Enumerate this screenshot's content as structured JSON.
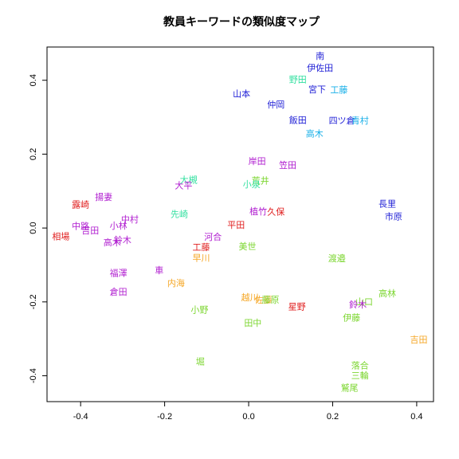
{
  "chart_data": {
    "type": "scatter",
    "title": "教員キーワードの類似度マップ",
    "xlabel": "",
    "ylabel": "",
    "xlim": [
      -0.48,
      0.44
    ],
    "ylim": [
      -0.47,
      0.49
    ],
    "xticks": [
      -0.4,
      -0.2,
      0.0,
      0.2,
      0.4
    ],
    "xtick_labels": [
      "-0.4",
      "-0.2",
      "0.0",
      "0.2",
      "0.4"
    ],
    "yticks": [
      -0.4,
      -0.2,
      0.0,
      0.2,
      0.4
    ],
    "ytick_labels": [
      "-0.4",
      "-0.2",
      "0.0",
      "0.2",
      "0.4"
    ],
    "grid": false,
    "points": [
      {
        "label": "南",
        "x": 0.17,
        "y": 0.465,
        "color": "#1f1fd6"
      },
      {
        "label": "伊佐田",
        "x": 0.17,
        "y": 0.433,
        "color": "#1f1fd6"
      },
      {
        "label": "野田",
        "x": 0.117,
        "y": 0.402,
        "color": "#33e0a0"
      },
      {
        "label": "宮下",
        "x": 0.163,
        "y": 0.375,
        "color": "#1f1fd6"
      },
      {
        "label": "工藤",
        "x": 0.215,
        "y": 0.373,
        "color": "#1ab0e8"
      },
      {
        "label": "山本",
        "x": -0.017,
        "y": 0.363,
        "color": "#1f1fd6"
      },
      {
        "label": "仲岡",
        "x": 0.065,
        "y": 0.334,
        "color": "#1f1fd6"
      },
      {
        "label": "飯田",
        "x": 0.117,
        "y": 0.292,
        "color": "#1f1fd6"
      },
      {
        "label": "四ツ倉",
        "x": 0.222,
        "y": 0.29,
        "color": "#1f1fd6"
      },
      {
        "label": "青村",
        "x": 0.265,
        "y": 0.29,
        "color": "#1ab0e8"
      },
      {
        "label": "高木",
        "x": 0.157,
        "y": 0.255,
        "color": "#1ab0e8"
      },
      {
        "label": "岸田",
        "x": 0.02,
        "y": 0.18,
        "color": "#b01ed0"
      },
      {
        "label": "笠田",
        "x": 0.093,
        "y": 0.17,
        "color": "#b01ed0"
      },
      {
        "label": "荒井",
        "x": 0.028,
        "y": 0.128,
        "color": "#7cd630"
      },
      {
        "label": "小泉",
        "x": 0.007,
        "y": 0.118,
        "color": "#33e0a0"
      },
      {
        "label": "大槻",
        "x": -0.143,
        "y": 0.13,
        "color": "#33e0a0"
      },
      {
        "label": "大平",
        "x": -0.155,
        "y": 0.115,
        "color": "#b01ed0"
      },
      {
        "label": "長里",
        "x": 0.33,
        "y": 0.065,
        "color": "#1f1fd6"
      },
      {
        "label": "市原",
        "x": 0.345,
        "y": 0.03,
        "color": "#1f1fd6"
      },
      {
        "label": "揚妻",
        "x": -0.345,
        "y": 0.083,
        "color": "#b01ed0"
      },
      {
        "label": "露崎",
        "x": -0.4,
        "y": 0.063,
        "color": "#e01f1f"
      },
      {
        "label": "植竹",
        "x": 0.023,
        "y": 0.045,
        "color": "#b01ed0"
      },
      {
        "label": "久保",
        "x": 0.065,
        "y": 0.043,
        "color": "#e01f1f"
      },
      {
        "label": "先崎",
        "x": -0.165,
        "y": 0.037,
        "color": "#33e0a0"
      },
      {
        "label": "中村",
        "x": -0.283,
        "y": 0.023,
        "color": "#b01ed0"
      },
      {
        "label": "平田",
        "x": -0.03,
        "y": 0.008,
        "color": "#e01f1f"
      },
      {
        "label": "小林",
        "x": -0.31,
        "y": 0.006,
        "color": "#b01ed0"
      },
      {
        "label": "中路",
        "x": -0.4,
        "y": 0.005,
        "color": "#b01ed0"
      },
      {
        "label": "吉田",
        "x": -0.377,
        "y": -0.007,
        "color": "#b01ed0"
      },
      {
        "label": "相場",
        "x": -0.447,
        "y": -0.023,
        "color": "#e01f1f"
      },
      {
        "label": "河合",
        "x": -0.085,
        "y": -0.025,
        "color": "#b01ed0"
      },
      {
        "label": "鈴木",
        "x": -0.3,
        "y": -0.033,
        "color": "#b01ed0"
      },
      {
        "label": "高木",
        "x": -0.325,
        "y": -0.04,
        "color": "#b01ed0"
      },
      {
        "label": "美世",
        "x": -0.003,
        "y": -0.05,
        "color": "#7cd630"
      },
      {
        "label": "工藤",
        "x": -0.113,
        "y": -0.053,
        "color": "#e01f1f"
      },
      {
        "label": "早川",
        "x": -0.113,
        "y": -0.082,
        "color": "#f5a623"
      },
      {
        "label": "渡邉",
        "x": 0.21,
        "y": -0.083,
        "color": "#7cd630"
      },
      {
        "label": "車",
        "x": -0.213,
        "y": -0.115,
        "color": "#b01ed0"
      },
      {
        "label": "福澤",
        "x": -0.31,
        "y": -0.123,
        "color": "#b01ed0"
      },
      {
        "label": "内海",
        "x": -0.173,
        "y": -0.15,
        "color": "#f5a623"
      },
      {
        "label": "倉田",
        "x": -0.31,
        "y": -0.173,
        "color": "#b01ed0"
      },
      {
        "label": "高林",
        "x": 0.33,
        "y": -0.178,
        "color": "#7cd630"
      },
      {
        "label": "越川",
        "x": 0.003,
        "y": -0.188,
        "color": "#f5a623"
      },
      {
        "label": "佐藤",
        "x": 0.035,
        "y": -0.195,
        "color": "#f5a623"
      },
      {
        "label": "藤原",
        "x": 0.052,
        "y": -0.195,
        "color": "#7cd630"
      },
      {
        "label": "山口",
        "x": 0.275,
        "y": -0.2,
        "color": "#7cd630"
      },
      {
        "label": "鈴木",
        "x": 0.26,
        "y": -0.208,
        "color": "#b01ed0"
      },
      {
        "label": "星野",
        "x": 0.115,
        "y": -0.213,
        "color": "#e01f1f"
      },
      {
        "label": "小野",
        "x": -0.117,
        "y": -0.222,
        "color": "#7cd630"
      },
      {
        "label": "伊藤",
        "x": 0.245,
        "y": -0.243,
        "color": "#7cd630"
      },
      {
        "label": "田中",
        "x": 0.01,
        "y": -0.258,
        "color": "#7cd630"
      },
      {
        "label": "吉田",
        "x": 0.405,
        "y": -0.303,
        "color": "#f5a623"
      },
      {
        "label": "堀",
        "x": -0.115,
        "y": -0.362,
        "color": "#7cd630"
      },
      {
        "label": "落合",
        "x": 0.265,
        "y": -0.373,
        "color": "#7cd630"
      },
      {
        "label": "三輪",
        "x": 0.265,
        "y": -0.4,
        "color": "#7cd630"
      },
      {
        "label": "鷲尾",
        "x": 0.24,
        "y": -0.433,
        "color": "#7cd630"
      }
    ]
  }
}
